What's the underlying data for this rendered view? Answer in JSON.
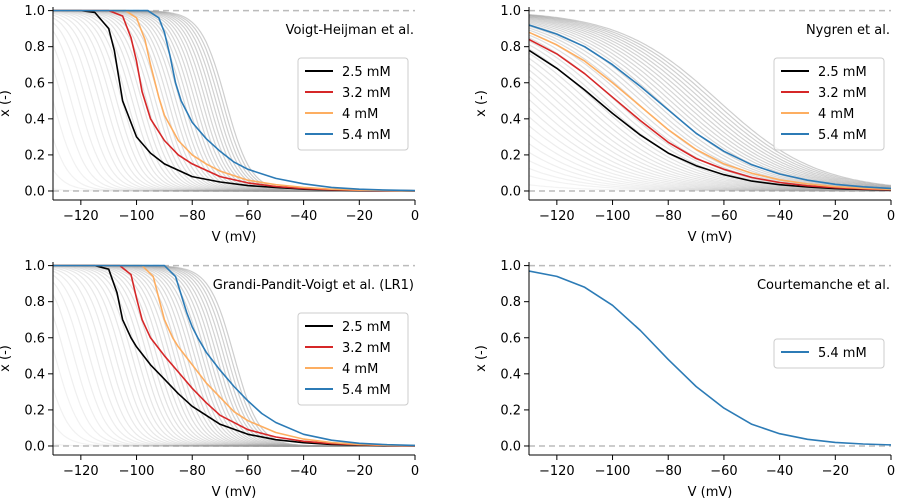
{
  "colors": {
    "2.5": "#000000",
    "3.2": "#d62728",
    "4": "#fdae61",
    "5.4": "#2c7bb6",
    "family": "#9e9e9e",
    "refline": "#bbbbbb"
  },
  "chart_data": [
    {
      "type": "line",
      "title": "Voigt-Heijman et al.",
      "xlabel": "V (mV)",
      "ylabel": "x (-)",
      "xlim": [
        -130,
        0
      ],
      "ylim": [
        -0.05,
        1.02
      ],
      "xticks": [
        "−120",
        "−100",
        "−80",
        "−60",
        "−40",
        "−20",
        "0"
      ],
      "yticks": [
        "0.0",
        "0.2",
        "0.4",
        "0.6",
        "0.8",
        "1.0"
      ],
      "reference_lines_y": [
        0,
        1
      ],
      "background_family": {
        "count": 40,
        "color": "#9e9e9e",
        "half_activation_range": [
          -150,
          -68
        ]
      },
      "legend_position": "center-right",
      "series": [
        {
          "name": "2.5 mM",
          "color": "#000000",
          "x": [
            -130,
            -120,
            -115,
            -110,
            -108,
            -105,
            -100,
            -95,
            -90,
            -80,
            -70,
            -60,
            -50,
            -40,
            -30,
            -20,
            -10,
            0
          ],
          "y": [
            1.0,
            1.0,
            0.99,
            0.9,
            0.78,
            0.5,
            0.3,
            0.21,
            0.15,
            0.08,
            0.05,
            0.03,
            0.02,
            0.01,
            0.005,
            0.003,
            0.002,
            0.001
          ]
        },
        {
          "name": "3.2 mM",
          "color": "#d62728",
          "x": [
            -130,
            -110,
            -105,
            -102,
            -100,
            -98,
            -95,
            -90,
            -85,
            -80,
            -70,
            -60,
            -50,
            -40,
            -30,
            -20,
            -10,
            0
          ],
          "y": [
            1.0,
            1.0,
            0.97,
            0.85,
            0.72,
            0.55,
            0.4,
            0.28,
            0.2,
            0.15,
            0.08,
            0.045,
            0.025,
            0.013,
            0.007,
            0.004,
            0.002,
            0.001
          ]
        },
        {
          "name": "4 mM",
          "color": "#fdae61",
          "x": [
            -130,
            -104,
            -100,
            -97,
            -95,
            -92,
            -90,
            -85,
            -80,
            -75,
            -70,
            -60,
            -50,
            -40,
            -30,
            -20,
            -10,
            0
          ],
          "y": [
            1.0,
            1.0,
            0.96,
            0.84,
            0.7,
            0.52,
            0.42,
            0.28,
            0.2,
            0.15,
            0.11,
            0.06,
            0.035,
            0.02,
            0.01,
            0.005,
            0.003,
            0.001
          ]
        },
        {
          "name": "5.4 mM",
          "color": "#2c7bb6",
          "x": [
            -130,
            -96,
            -92,
            -90,
            -88,
            -86,
            -84,
            -80,
            -75,
            -70,
            -65,
            -60,
            -50,
            -40,
            -30,
            -20,
            -10,
            0
          ],
          "y": [
            1.0,
            1.0,
            0.96,
            0.88,
            0.75,
            0.6,
            0.5,
            0.38,
            0.29,
            0.22,
            0.16,
            0.12,
            0.07,
            0.04,
            0.02,
            0.01,
            0.005,
            0.002
          ]
        }
      ]
    },
    {
      "type": "line",
      "title": "Nygren et al.",
      "xlabel": "V (mV)",
      "ylabel": "x (-)",
      "xlim": [
        -130,
        0
      ],
      "ylim": [
        -0.05,
        1.02
      ],
      "xticks": [
        "−120",
        "−100",
        "−80",
        "−60",
        "−40",
        "−20",
        "0"
      ],
      "yticks": [
        "0.0",
        "0.2",
        "0.4",
        "0.6",
        "0.8",
        "1.0"
      ],
      "reference_lines_y": [
        0,
        1
      ],
      "background_family": {
        "count": 40,
        "color": "#9e9e9e",
        "half_activation_range": [
          -190,
          -62
        ]
      },
      "legend_position": "center-right",
      "series": [
        {
          "name": "2.5 mM",
          "color": "#000000",
          "x": [
            -130,
            -120,
            -110,
            -100,
            -90,
            -80,
            -70,
            -60,
            -50,
            -40,
            -30,
            -20,
            -10,
            0
          ],
          "y": [
            0.78,
            0.68,
            0.56,
            0.43,
            0.31,
            0.21,
            0.14,
            0.09,
            0.055,
            0.035,
            0.022,
            0.013,
            0.008,
            0.005
          ]
        },
        {
          "name": "3.2 mM",
          "color": "#d62728",
          "x": [
            -130,
            -120,
            -110,
            -100,
            -90,
            -80,
            -70,
            -60,
            -50,
            -40,
            -30,
            -20,
            -10,
            0
          ],
          "y": [
            0.84,
            0.76,
            0.65,
            0.52,
            0.39,
            0.27,
            0.18,
            0.12,
            0.075,
            0.047,
            0.029,
            0.018,
            0.011,
            0.007
          ]
        },
        {
          "name": "4 mM",
          "color": "#fdae61",
          "x": [
            -130,
            -120,
            -110,
            -100,
            -90,
            -80,
            -70,
            -60,
            -50,
            -40,
            -30,
            -20,
            -10,
            0
          ],
          "y": [
            0.88,
            0.81,
            0.72,
            0.6,
            0.47,
            0.34,
            0.23,
            0.15,
            0.098,
            0.062,
            0.039,
            0.024,
            0.015,
            0.009
          ]
        },
        {
          "name": "5.4 mM",
          "color": "#2c7bb6",
          "x": [
            -130,
            -120,
            -110,
            -100,
            -90,
            -80,
            -70,
            -60,
            -50,
            -40,
            -30,
            -20,
            -10,
            0
          ],
          "y": [
            0.92,
            0.87,
            0.8,
            0.7,
            0.58,
            0.45,
            0.32,
            0.22,
            0.145,
            0.094,
            0.06,
            0.037,
            0.023,
            0.014
          ]
        }
      ]
    },
    {
      "type": "line",
      "title": "Grandi-Pandit-Voigt et al. (LR1)",
      "xlabel": "V (mV)",
      "ylabel": "x (-)",
      "xlim": [
        -130,
        0
      ],
      "ylim": [
        -0.05,
        1.02
      ],
      "xticks": [
        "−120",
        "−100",
        "−80",
        "−60",
        "−40",
        "−20",
        "0"
      ],
      "yticks": [
        "0.0",
        "0.2",
        "0.4",
        "0.6",
        "0.8",
        "1.0"
      ],
      "reference_lines_y": [
        0,
        1
      ],
      "background_family": {
        "count": 40,
        "color": "#9e9e9e",
        "half_activation_range": [
          -150,
          -65
        ]
      },
      "legend_position": "center-right",
      "series": [
        {
          "name": "2.5 mM",
          "color": "#000000",
          "x": [
            -130,
            -115,
            -110,
            -107,
            -105,
            -102,
            -100,
            -95,
            -90,
            -85,
            -80,
            -70,
            -60,
            -50,
            -40,
            -30,
            -20,
            -10,
            0
          ],
          "y": [
            1.0,
            1.0,
            0.98,
            0.85,
            0.7,
            0.6,
            0.55,
            0.45,
            0.37,
            0.29,
            0.22,
            0.12,
            0.065,
            0.035,
            0.018,
            0.009,
            0.005,
            0.002,
            0.001
          ]
        },
        {
          "name": "3.2 mM",
          "color": "#d62728",
          "x": [
            -130,
            -106,
            -102,
            -100,
            -98,
            -95,
            -90,
            -85,
            -80,
            -75,
            -70,
            -60,
            -50,
            -40,
            -30,
            -20,
            -10,
            0
          ],
          "y": [
            1.0,
            1.0,
            0.95,
            0.82,
            0.7,
            0.6,
            0.5,
            0.41,
            0.32,
            0.24,
            0.17,
            0.09,
            0.05,
            0.026,
            0.013,
            0.007,
            0.003,
            0.001
          ]
        },
        {
          "name": "4 mM",
          "color": "#fdae61",
          "x": [
            -130,
            -98,
            -94,
            -92,
            -90,
            -87,
            -85,
            -80,
            -75,
            -70,
            -65,
            -60,
            -50,
            -40,
            -30,
            -20,
            -10,
            0
          ],
          "y": [
            1.0,
            1.0,
            0.94,
            0.82,
            0.7,
            0.6,
            0.55,
            0.45,
            0.35,
            0.27,
            0.19,
            0.14,
            0.075,
            0.038,
            0.019,
            0.009,
            0.004,
            0.002
          ]
        },
        {
          "name": "5.4 mM",
          "color": "#2c7bb6",
          "x": [
            -130,
            -90,
            -86,
            -84,
            -82,
            -80,
            -78,
            -75,
            -70,
            -65,
            -60,
            -55,
            -50,
            -40,
            -30,
            -20,
            -10,
            0
          ],
          "y": [
            1.0,
            1.0,
            0.94,
            0.84,
            0.74,
            0.66,
            0.6,
            0.52,
            0.42,
            0.33,
            0.25,
            0.18,
            0.13,
            0.065,
            0.032,
            0.015,
            0.007,
            0.003
          ]
        }
      ]
    },
    {
      "type": "line",
      "title": "Courtemanche et al.",
      "xlabel": "V (mV)",
      "ylabel": "x (-)",
      "xlim": [
        -130,
        0
      ],
      "ylim": [
        -0.05,
        1.02
      ],
      "xticks": [
        "−120",
        "−100",
        "−80",
        "−60",
        "−40",
        "−20",
        "0"
      ],
      "yticks": [
        "0.0",
        "0.2",
        "0.4",
        "0.6",
        "0.8",
        "1.0"
      ],
      "reference_lines_y": [
        0,
        1
      ],
      "legend_position": "center-right",
      "series": [
        {
          "name": "5.4 mM",
          "color": "#2c7bb6",
          "x": [
            -130,
            -120,
            -110,
            -100,
            -90,
            -80,
            -70,
            -60,
            -50,
            -40,
            -30,
            -20,
            -10,
            0
          ],
          "y": [
            0.97,
            0.94,
            0.88,
            0.78,
            0.64,
            0.48,
            0.33,
            0.21,
            0.12,
            0.068,
            0.037,
            0.02,
            0.011,
            0.006
          ]
        }
      ]
    }
  ]
}
